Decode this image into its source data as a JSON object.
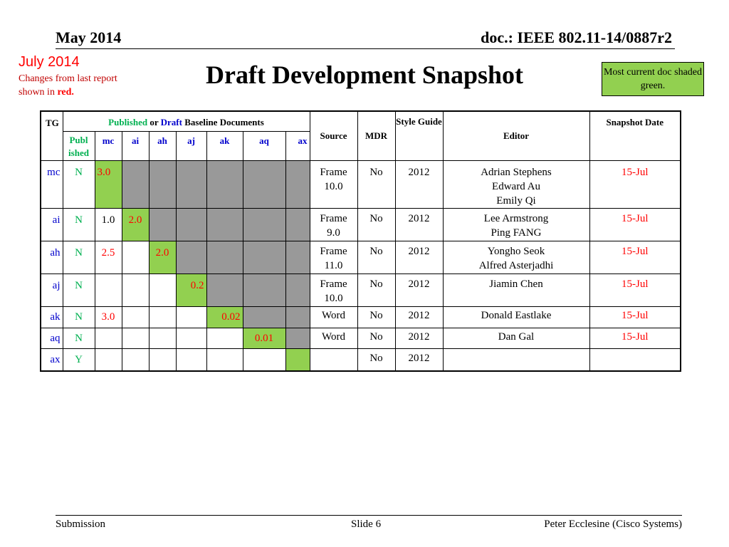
{
  "header": {
    "date": "May 2014",
    "doc_id": "doc.: IEEE 802.11-14/0887r2"
  },
  "update_label": "July 2014",
  "changes_note": {
    "text": "Changes from  last report shown in",
    "emphasis": "red."
  },
  "title": "Draft Development Snapshot",
  "legend_note": "Most current doc shaded green.",
  "colors": {
    "current_green": "#92d050",
    "shade_gray": "#999999",
    "change_red": "#ff0000",
    "published_green": "#00b050",
    "draft_blue": "#0000cc"
  },
  "table": {
    "headers": {
      "tg": "TG",
      "baseline_published": "Published",
      "baseline_or": " or ",
      "baseline_draft": "Draft",
      "baseline_rest": " Baseline Documents",
      "published": "Publ ished",
      "columns": [
        "mc",
        "ai",
        "ah",
        "aj",
        "ak",
        "aq",
        "ax"
      ],
      "source": "Source",
      "mdr": "MDR",
      "style_guide": "Style Guide",
      "editor": "Editor",
      "snapshot_date": "Snapshot Date"
    },
    "rows": [
      {
        "tg": "mc",
        "published": "N",
        "baselines": [
          "3.0",
          "",
          "",
          "",
          "",
          "",
          ""
        ],
        "source": [
          "Frame",
          "10.0"
        ],
        "mdr": "No",
        "style_guide": "2012",
        "editors": [
          "Adrian Stephens",
          "Edward Au",
          "Emily Qi"
        ],
        "snapshot": "15-Jul"
      },
      {
        "tg": "ai",
        "published": "N",
        "baselines": [
          "1.0",
          "2.0",
          "",
          "",
          "",
          "",
          ""
        ],
        "source": [
          "Frame",
          "9.0"
        ],
        "mdr": "No",
        "style_guide": "2012",
        "editors": [
          "Lee Armstrong",
          "Ping FANG"
        ],
        "snapshot": "15-Jul"
      },
      {
        "tg": "ah",
        "published": "N",
        "baselines": [
          "2.5",
          "",
          "2.0",
          "",
          "",
          "",
          ""
        ],
        "source": [
          "Frame",
          "11.0"
        ],
        "mdr": "No",
        "style_guide": "2012",
        "editors": [
          "Yongho Seok",
          "Alfred Asterjadhi"
        ],
        "snapshot": "15-Jul"
      },
      {
        "tg": "aj",
        "published": "N",
        "baselines": [
          "",
          "",
          "",
          "0.2",
          "",
          "",
          ""
        ],
        "source": [
          "Frame",
          "10.0"
        ],
        "mdr": "No",
        "style_guide": "2012",
        "editors": [
          "Jiamin Chen"
        ],
        "snapshot": "15-Jul"
      },
      {
        "tg": "ak",
        "published": "N",
        "baselines": [
          "3.0",
          "",
          "",
          "",
          "0.02",
          "",
          ""
        ],
        "source": [
          "Word"
        ],
        "mdr": "No",
        "style_guide": "2012",
        "editors": [
          "Donald Eastlake"
        ],
        "snapshot": "15-Jul"
      },
      {
        "tg": "aq",
        "published": "N",
        "baselines": [
          "",
          "",
          "",
          "",
          "",
          "0.01",
          ""
        ],
        "source": [
          "Word"
        ],
        "mdr": "No",
        "style_guide": "2012",
        "editors": [
          "Dan Gal"
        ],
        "snapshot": "15-Jul"
      },
      {
        "tg": "ax",
        "published": "Y",
        "baselines": [
          "",
          "",
          "",
          "",
          "",
          "",
          ""
        ],
        "source": [
          ""
        ],
        "mdr": "No",
        "style_guide": "2012",
        "editors": [
          ""
        ],
        "snapshot": ""
      }
    ]
  },
  "footer": {
    "left": "Submission",
    "center": "Slide 6",
    "right": "Peter Ecclesine (Cisco Systems)"
  }
}
